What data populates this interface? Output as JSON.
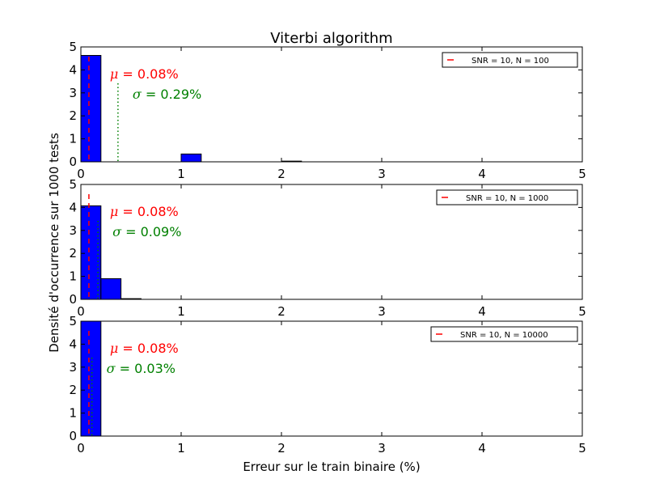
{
  "title": "Viterbi algorithm",
  "xlabel": "Erreur sur le train binaire (%)",
  "ylabel": "Densité d'occurrence sur 1000 tests",
  "colors": {
    "bar": "#0000ff",
    "mean_line": "#ff0000",
    "sigma_line": "#008000",
    "axes": "#000000"
  },
  "chart_data": [
    {
      "type": "bar",
      "xlim": [
        0,
        5
      ],
      "ylim": [
        0,
        5
      ],
      "xticks": [
        "0",
        "1",
        "2",
        "3",
        "4",
        "5"
      ],
      "yticks": [
        "0",
        "1",
        "2",
        "3",
        "4",
        "5"
      ],
      "bin_width": 0.2,
      "bins": [
        {
          "x0": 0.0,
          "value": 4.63
        },
        {
          "x0": 1.0,
          "value": 0.34
        },
        {
          "x0": 2.0,
          "value": 0.03
        }
      ],
      "mean_x": 0.08,
      "sigma_x": 0.37,
      "legend": "SNR = 10, N = 100",
      "legend_position": "top-right",
      "mu_text": "= 0.08%",
      "sigma_text": "= 0.29%"
    },
    {
      "type": "bar",
      "xlim": [
        0,
        5
      ],
      "ylim": [
        0,
        5
      ],
      "xticks": [
        "0",
        "1",
        "2",
        "3",
        "4",
        "5"
      ],
      "yticks": [
        "0",
        "1",
        "2",
        "3",
        "4",
        "5"
      ],
      "bin_width": 0.2,
      "bins": [
        {
          "x0": 0.0,
          "value": 4.07
        },
        {
          "x0": 0.2,
          "value": 0.9
        },
        {
          "x0": 0.4,
          "value": 0.03
        }
      ],
      "mean_x": 0.08,
      "sigma_x": 0.17,
      "legend": "SNR = 10, N = 1000",
      "legend_position": "top-right",
      "mu_text": "= 0.08%",
      "sigma_text": "= 0.09%"
    },
    {
      "type": "bar",
      "xlim": [
        0,
        5
      ],
      "ylim": [
        0,
        5
      ],
      "xticks": [
        "0",
        "1",
        "2",
        "3",
        "4",
        "5"
      ],
      "yticks": [
        "0",
        "1",
        "2",
        "3",
        "4",
        "5"
      ],
      "bin_width": 0.2,
      "bins": [
        {
          "x0": 0.0,
          "value": 5.0
        }
      ],
      "mean_x": 0.08,
      "sigma_x": 0.11,
      "legend": "SNR = 10, N = 10000",
      "legend_position": "top-right",
      "mu_text": "= 0.08%",
      "sigma_text": "= 0.03%"
    }
  ]
}
